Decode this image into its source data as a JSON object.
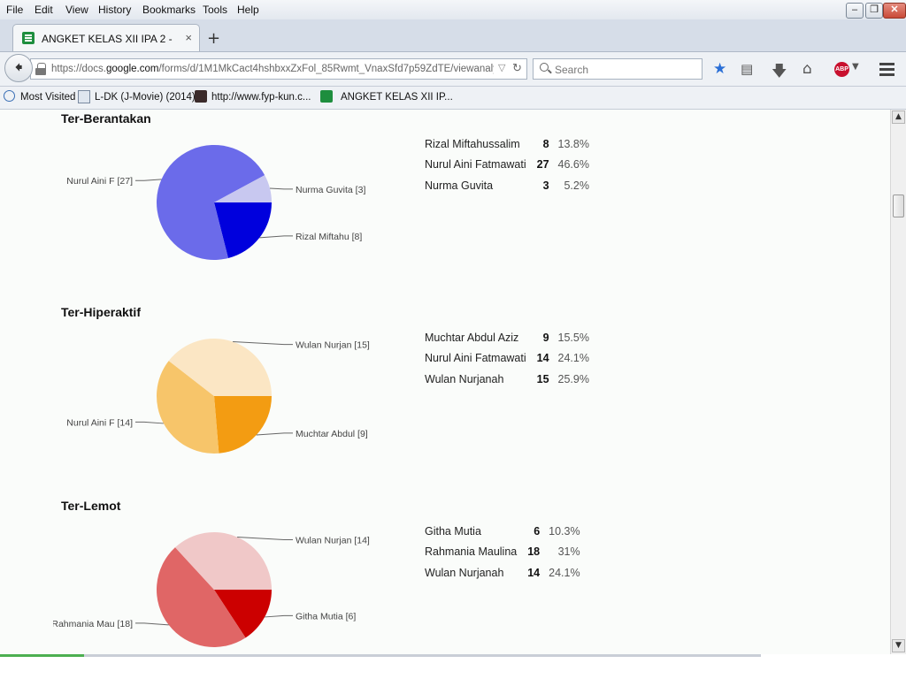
{
  "menubar": {
    "items": [
      {
        "label": "File"
      },
      {
        "label": "Edit"
      },
      {
        "label": "View"
      },
      {
        "label": "History"
      },
      {
        "label": "Bookmarks"
      },
      {
        "label": "Tools"
      },
      {
        "label": "Help"
      }
    ]
  },
  "tab": {
    "title": "ANGKET KELAS XII IPA 2 - Go...",
    "close": "×"
  },
  "newtab": "+",
  "navbar": {
    "url_prefix": "https://docs.",
    "url_domain": "google.com",
    "url_rest": "/forms/d/1M1MkCact4hshbxxZxFol_85Rwmt_VnaxSfd7p59ZdTE/viewanalytics?",
    "search_placeholder": "Search"
  },
  "bookmarks": [
    {
      "label": "Most Visited"
    },
    {
      "label": "L-DK (J-Movie) (2014)"
    },
    {
      "label": "http://www.fyp-kun.c..."
    },
    {
      "label": "ANGKET KELAS XII IP..."
    }
  ],
  "sections": [
    {
      "title": "Ter-Berantakan",
      "chart_data": {
        "type": "pie",
        "labels": [
          "Rizal Miftahu [8]",
          "Nurul Aini F [27]",
          "Nurma Guvita [3]"
        ],
        "values": [
          8,
          27,
          3
        ],
        "colors": [
          "#0000dd",
          "#6b6bea",
          "#c8c8f0"
        ]
      },
      "rows": [
        {
          "name": "Rizal Miftahussalim",
          "count": "8",
          "percent": "13.8%"
        },
        {
          "name": "Nurul Aini Fatmawati",
          "count": "27",
          "percent": "46.6%"
        },
        {
          "name": "Nurma Guvita",
          "count": "3",
          "percent": "5.2%"
        }
      ]
    },
    {
      "title": "Ter-Hiperaktif",
      "chart_data": {
        "type": "pie",
        "labels": [
          "Muchtar Abdul [9]",
          "Nurul Aini F [14]",
          "Wulan Nurjan [15]"
        ],
        "values": [
          9,
          14,
          15
        ],
        "colors": [
          "#f39c12",
          "#f7c56a",
          "#fbe6c4"
        ]
      },
      "rows": [
        {
          "name": "Muchtar Abdul Aziz",
          "count": "9",
          "percent": "15.5%"
        },
        {
          "name": "Nurul Aini Fatmawati",
          "count": "14",
          "percent": "24.1%"
        },
        {
          "name": "Wulan Nurjanah",
          "count": "15",
          "percent": "25.9%"
        }
      ]
    },
    {
      "title": "Ter-Lemot",
      "chart_data": {
        "type": "pie",
        "labels": [
          "Githa Mutia [6]",
          "Rahmania Mau [18]",
          "Wulan Nurjan [14]"
        ],
        "values": [
          6,
          18,
          14
        ],
        "colors": [
          "#cc0000",
          "#e06666",
          "#f0c8c8"
        ]
      },
      "rows": [
        {
          "name": "Githa Mutia",
          "count": "6",
          "percent": "10.3%"
        },
        {
          "name": "Rahmania Maulina",
          "count": "18",
          "percent": "31%"
        },
        {
          "name": "Wulan Nurjanah",
          "count": "14",
          "percent": "24.1%"
        }
      ]
    }
  ]
}
